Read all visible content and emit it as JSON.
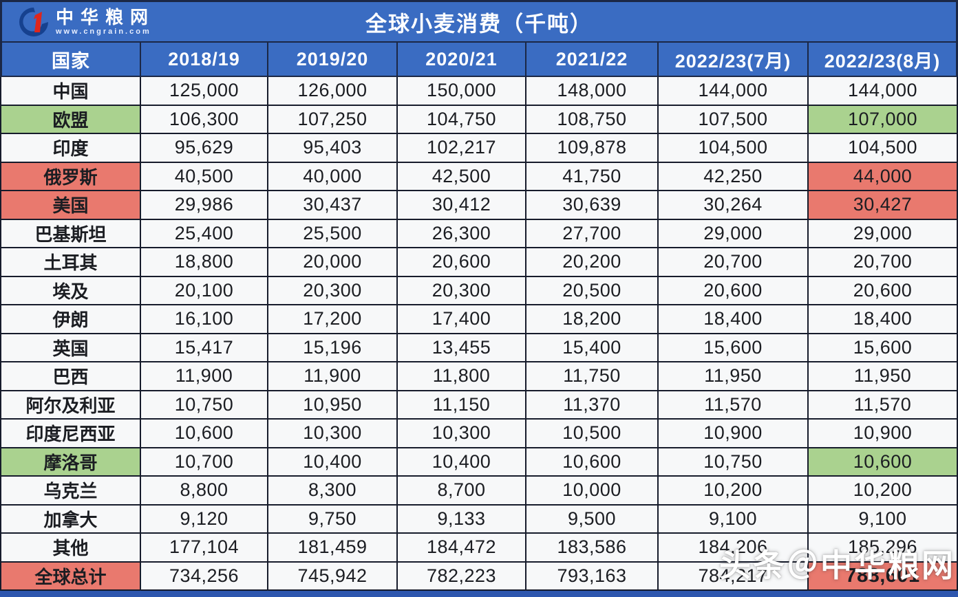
{
  "header": {
    "logo": {
      "brand": "中华粮网",
      "site": "www.cngrain.com"
    },
    "title": "全球小麦消费（千吨）"
  },
  "watermark": "头条＠中华粮网",
  "colors": {
    "band_blue": "#3a6cc2",
    "border_navy": "#1b2745",
    "grid_dark": "#161b2b",
    "cell_bg": "#f7f8f9",
    "highlight_green": "#aad28f",
    "highlight_red": "#e9796e",
    "bottom_bar": "#2d56ae",
    "text_dark": "#1b1d22",
    "logo_navy": "#16418f",
    "logo_red": "#df261c"
  },
  "chart_data": {
    "type": "table",
    "title": "全球小麦消费（千吨）",
    "unit": "千吨",
    "columns": [
      "国家",
      "2018/19",
      "2019/20",
      "2020/21",
      "2021/22",
      "2022/23(7月)",
      "2022/23(8月)"
    ],
    "rows": [
      {
        "country": "中国",
        "values": [
          "125,000",
          "126,000",
          "150,000",
          "148,000",
          "144,000",
          "144,000"
        ],
        "label_fill": null,
        "last_cell_fill": null,
        "total": false
      },
      {
        "country": "欧盟",
        "values": [
          "106,300",
          "107,250",
          "104,750",
          "108,750",
          "107,500",
          "107,000"
        ],
        "label_fill": "green",
        "last_cell_fill": "green",
        "total": false
      },
      {
        "country": "印度",
        "values": [
          "95,629",
          "95,403",
          "102,217",
          "109,878",
          "104,500",
          "104,500"
        ],
        "label_fill": null,
        "last_cell_fill": null,
        "total": false
      },
      {
        "country": "俄罗斯",
        "values": [
          "40,500",
          "40,000",
          "42,500",
          "41,750",
          "42,250",
          "44,000"
        ],
        "label_fill": "red",
        "last_cell_fill": "red",
        "total": false
      },
      {
        "country": "美国",
        "values": [
          "29,986",
          "30,437",
          "30,412",
          "30,639",
          "30,264",
          "30,427"
        ],
        "label_fill": "red",
        "last_cell_fill": "red",
        "total": false
      },
      {
        "country": "巴基斯坦",
        "values": [
          "25,400",
          "25,500",
          "26,300",
          "27,700",
          "29,000",
          "29,000"
        ],
        "label_fill": null,
        "last_cell_fill": null,
        "total": false
      },
      {
        "country": "土耳其",
        "values": [
          "18,800",
          "20,000",
          "20,600",
          "20,200",
          "20,700",
          "20,700"
        ],
        "label_fill": null,
        "last_cell_fill": null,
        "total": false
      },
      {
        "country": "埃及",
        "values": [
          "20,100",
          "20,300",
          "20,300",
          "20,500",
          "20,600",
          "20,600"
        ],
        "label_fill": null,
        "last_cell_fill": null,
        "total": false
      },
      {
        "country": "伊朗",
        "values": [
          "16,100",
          "17,200",
          "17,400",
          "18,200",
          "18,400",
          "18,400"
        ],
        "label_fill": null,
        "last_cell_fill": null,
        "total": false
      },
      {
        "country": "英国",
        "values": [
          "15,417",
          "15,196",
          "13,455",
          "15,400",
          "15,600",
          "15,600"
        ],
        "label_fill": null,
        "last_cell_fill": null,
        "total": false
      },
      {
        "country": "巴西",
        "values": [
          "11,900",
          "11,900",
          "11,800",
          "11,750",
          "11,950",
          "11,950"
        ],
        "label_fill": null,
        "last_cell_fill": null,
        "total": false
      },
      {
        "country": "阿尔及利亚",
        "values": [
          "10,750",
          "10,950",
          "11,150",
          "11,370",
          "11,570",
          "11,570"
        ],
        "label_fill": null,
        "last_cell_fill": null,
        "total": false
      },
      {
        "country": "印度尼西亚",
        "values": [
          "10,600",
          "10,300",
          "10,300",
          "10,500",
          "10,900",
          "10,900"
        ],
        "label_fill": null,
        "last_cell_fill": null,
        "total": false
      },
      {
        "country": "摩洛哥",
        "values": [
          "10,700",
          "10,400",
          "10,400",
          "10,600",
          "10,750",
          "10,600"
        ],
        "label_fill": "green",
        "last_cell_fill": "green",
        "total": false
      },
      {
        "country": "乌克兰",
        "values": [
          "8,800",
          "8,300",
          "8,700",
          "10,000",
          "10,200",
          "10,200"
        ],
        "label_fill": null,
        "last_cell_fill": null,
        "total": false
      },
      {
        "country": "加拿大",
        "values": [
          "9,120",
          "9,750",
          "9,133",
          "9,500",
          "9,100",
          "9,100"
        ],
        "label_fill": null,
        "last_cell_fill": null,
        "total": false
      },
      {
        "country": "其他",
        "values": [
          "177,104",
          "181,459",
          "184,472",
          "183,586",
          "184,206",
          "185,296"
        ],
        "label_fill": null,
        "last_cell_fill": null,
        "total": false
      },
      {
        "country": "全球总计",
        "values": [
          "734,256",
          "745,942",
          "782,223",
          "793,163",
          "784,217",
          "788,601"
        ],
        "label_fill": "red",
        "last_cell_fill": "red",
        "total": true
      }
    ]
  }
}
